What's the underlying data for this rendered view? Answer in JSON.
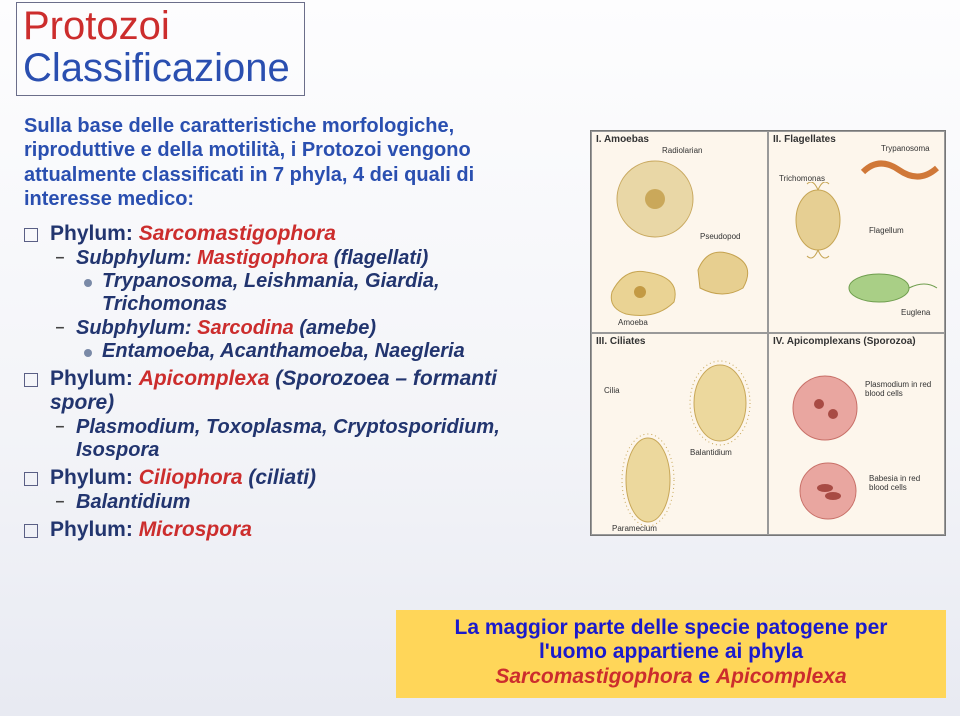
{
  "colors": {
    "title": "#cc2d2d",
    "subtitle": "#2a4fb0",
    "intro": "#2a4fb0",
    "phylum_prefix": "#22356f",
    "phylum_name": "#cc2d2d",
    "sub_prefix": "#22356f",
    "sub_name": "#cc2d2d",
    "examples": "#22356f",
    "footer_text": "#1a1acc",
    "footer_em": "#cc2d2d",
    "footer_bg": "#ffd659",
    "panel_bg": "#fdf6ec"
  },
  "title": "Protozoi",
  "subtitle": "Classificazione",
  "intro": "Sulla base delle caratteristiche morfologiche, riproduttive e della motilità, i Protozoi vengono attualmente classificati in 7 phyla, 4 dei quali di interesse medico:",
  "phyla": [
    {
      "prefix": "Phylum: ",
      "name": "Sarcomastigophora",
      "paren": "",
      "subs": [
        {
          "prefix": "Subphylum: ",
          "name": "Mastigophora",
          "paren": " (flagellati)",
          "examples": [
            "Trypanosoma, Leishmania, Giardia, Trichomonas"
          ]
        },
        {
          "prefix": "Subphylum: ",
          "name": "Sarcodina",
          "paren": " (amebe)",
          "examples": [
            "Entamoeba, Acanthamoeba, Naegleria"
          ]
        }
      ]
    },
    {
      "prefix": "Phylum: ",
      "name": "Apicomplexa",
      "paren": " (Sporozoea – formanti spore)",
      "subs": [
        {
          "prefix": "",
          "name": "Plasmodium, Toxoplasma, Cryptosporidium, Isospora",
          "paren": "",
          "examples": []
        }
      ]
    },
    {
      "prefix": "Phylum: ",
      "name": "Ciliophora",
      "paren": " (ciliati)",
      "subs": [
        {
          "prefix": "",
          "name": "Balantidium",
          "paren": "",
          "examples": []
        }
      ]
    },
    {
      "prefix": "Phylum: ",
      "name": "Microspora",
      "paren": "",
      "subs": []
    }
  ],
  "figure": {
    "panels": [
      {
        "label": "I. Amoebas"
      },
      {
        "label": "II. Flagellates"
      },
      {
        "label": "III. Ciliates"
      },
      {
        "label": "IV. Apicomplexans (Sporozoa)"
      }
    ],
    "mini_labels": {
      "p1": [
        "Radiolarian",
        "Pseudopod",
        "Amoeba"
      ],
      "p2": [
        "Trypanosoma",
        "Trichomonas",
        "Flagellum",
        "Euglena"
      ],
      "p3": [
        "Cilia",
        "Balantidium",
        "Paramecium"
      ],
      "p4": [
        "Plasmodium in red blood cells",
        "Babesia in red blood cells"
      ]
    }
  },
  "footer": {
    "line1a": "La maggior parte delle specie patogene per",
    "line2a": "l'uomo appartiene ai phyla",
    "em1": "Sarcomastigophora",
    "mid": " e ",
    "em2": "Apicomplexa"
  }
}
